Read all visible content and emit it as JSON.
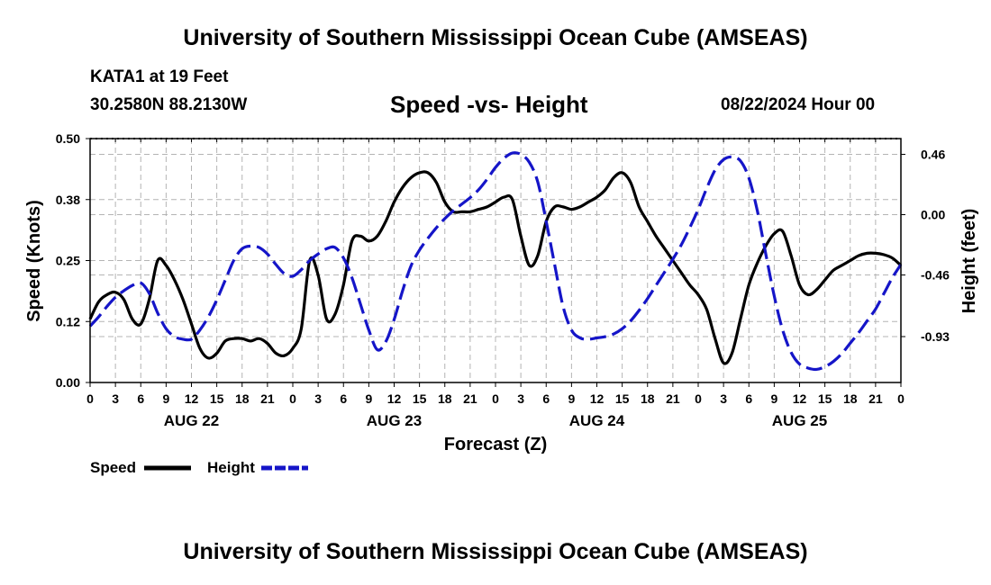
{
  "header": {
    "title": "University of Southern Mississippi Ocean Cube (AMSEAS)",
    "station": "KATA1 at 19 Feet",
    "coords": "30.2580N  88.2130W",
    "subtitle": "Speed -vs- Height",
    "datetime": "08/22/2024 Hour 00"
  },
  "footer": {
    "title": "University of Southern Mississippi Ocean Cube (AMSEAS)"
  },
  "legend": {
    "speed_label": "Speed",
    "height_label": "Height"
  },
  "colors": {
    "speed": "#000000",
    "height": "#1515c8",
    "grid": "#b4b4b4"
  },
  "chart_data": {
    "type": "line",
    "title": "Speed -vs- Height",
    "xlabel": "Forecast (Z)",
    "ylabel": "Speed (Knots)",
    "y2label": "Height (feet)",
    "x_range_hours": [
      0,
      96
    ],
    "ylim": [
      0,
      0.5
    ],
    "y2lim": [
      -1.28,
      0.58
    ],
    "yticks": [
      "0.00",
      "0.12",
      "0.25",
      "0.38",
      "0.50"
    ],
    "ytick_values": [
      0,
      0.125,
      0.25,
      0.375,
      0.5
    ],
    "y2ticks": [
      "-0.93",
      "-0.46",
      "0.00",
      "0.46"
    ],
    "y2tick_values": [
      -0.93,
      -0.46,
      0.0,
      0.46
    ],
    "xtick_labels": [
      "0",
      "3",
      "6",
      "9",
      "12",
      "15",
      "18",
      "21",
      "0",
      "3",
      "6",
      "9",
      "12",
      "15",
      "18",
      "21",
      "0",
      "3",
      "6",
      "9",
      "12",
      "15",
      "18",
      "21",
      "0",
      "3",
      "6",
      "9",
      "12",
      "15",
      "18",
      "21",
      "0"
    ],
    "day_labels": [
      {
        "label": "AUG 22",
        "hour": 12
      },
      {
        "label": "AUG 23",
        "hour": 36
      },
      {
        "label": "AUG 24",
        "hour": 60
      },
      {
        "label": "AUG 25",
        "hour": 84
      }
    ],
    "series": [
      {
        "name": "Speed",
        "axis": "left",
        "style": "solid",
        "x": [
          0,
          1,
          2,
          3,
          4,
          5,
          6,
          7,
          8,
          9,
          10,
          11,
          12,
          13,
          14,
          15,
          16,
          17,
          18,
          19,
          20,
          21,
          22,
          23,
          24,
          25,
          26,
          27,
          28,
          29,
          30,
          31,
          32,
          33,
          34,
          35,
          36,
          37,
          38,
          39,
          40,
          41,
          42,
          43,
          44,
          45,
          46,
          47,
          48,
          49,
          50,
          51,
          52,
          53,
          54,
          55,
          56,
          57,
          58,
          59,
          60,
          61,
          62,
          63,
          64,
          65,
          66,
          67,
          68,
          69,
          70,
          71,
          72,
          73,
          74,
          75,
          76,
          77,
          78,
          79,
          80,
          81,
          82,
          83,
          84,
          85,
          86,
          87,
          88,
          89,
          90,
          91,
          92,
          93,
          94,
          95,
          96
        ],
        "values": [
          0.13,
          0.165,
          0.18,
          0.185,
          0.17,
          0.13,
          0.12,
          0.17,
          0.25,
          0.24,
          0.21,
          0.17,
          0.12,
          0.07,
          0.05,
          0.06,
          0.085,
          0.09,
          0.09,
          0.085,
          0.09,
          0.08,
          0.06,
          0.055,
          0.07,
          0.11,
          0.25,
          0.22,
          0.13,
          0.14,
          0.2,
          0.29,
          0.3,
          0.29,
          0.3,
          0.33,
          0.37,
          0.4,
          0.42,
          0.43,
          0.43,
          0.41,
          0.37,
          0.35,
          0.35,
          0.35,
          0.355,
          0.36,
          0.37,
          0.38,
          0.375,
          0.3,
          0.24,
          0.26,
          0.33,
          0.36,
          0.36,
          0.355,
          0.36,
          0.37,
          0.38,
          0.395,
          0.42,
          0.43,
          0.41,
          0.36,
          0.33,
          0.3,
          0.275,
          0.25,
          0.225,
          0.2,
          0.18,
          0.15,
          0.09,
          0.04,
          0.06,
          0.13,
          0.2,
          0.245,
          0.28,
          0.305,
          0.31,
          0.26,
          0.2,
          0.18,
          0.19,
          0.21,
          0.23,
          0.24,
          0.25,
          0.26,
          0.265,
          0.265,
          0.262,
          0.255,
          0.24
        ]
      },
      {
        "name": "Height",
        "axis": "right",
        "style": "dashed",
        "x": [
          0,
          1,
          2,
          3,
          4,
          5,
          6,
          7,
          8,
          9,
          10,
          11,
          12,
          13,
          14,
          15,
          16,
          17,
          18,
          19,
          20,
          21,
          22,
          23,
          24,
          25,
          26,
          27,
          28,
          29,
          30,
          31,
          32,
          33,
          34,
          35,
          36,
          37,
          38,
          39,
          40,
          41,
          42,
          43,
          44,
          45,
          46,
          47,
          48,
          49,
          50,
          51,
          52,
          53,
          54,
          55,
          56,
          57,
          58,
          59,
          60,
          61,
          62,
          63,
          64,
          65,
          66,
          67,
          68,
          69,
          70,
          71,
          72,
          73,
          74,
          75,
          76,
          77,
          78,
          79,
          80,
          81,
          82,
          83,
          84,
          85,
          86,
          87,
          88,
          89,
          90,
          91,
          92,
          93,
          94,
          95,
          96
        ],
        "values": [
          -0.85,
          -0.78,
          -0.7,
          -0.63,
          -0.58,
          -0.54,
          -0.52,
          -0.6,
          -0.75,
          -0.87,
          -0.93,
          -0.95,
          -0.95,
          -0.88,
          -0.78,
          -0.65,
          -0.5,
          -0.35,
          -0.26,
          -0.24,
          -0.25,
          -0.3,
          -0.38,
          -0.45,
          -0.47,
          -0.42,
          -0.35,
          -0.3,
          -0.26,
          -0.25,
          -0.33,
          -0.48,
          -0.68,
          -0.88,
          -1.03,
          -0.97,
          -0.8,
          -0.58,
          -0.39,
          -0.27,
          -0.18,
          -0.1,
          -0.03,
          0.03,
          0.08,
          0.13,
          0.19,
          0.27,
          0.36,
          0.43,
          0.47,
          0.46,
          0.4,
          0.25,
          -0.05,
          -0.38,
          -0.7,
          -0.88,
          -0.94,
          -0.95,
          -0.94,
          -0.93,
          -0.91,
          -0.87,
          -0.81,
          -0.73,
          -0.64,
          -0.54,
          -0.44,
          -0.34,
          -0.23,
          -0.1,
          0.04,
          0.2,
          0.34,
          0.42,
          0.44,
          0.41,
          0.28,
          0.03,
          -0.3,
          -0.62,
          -0.88,
          -1.05,
          -1.14,
          -1.17,
          -1.18,
          -1.16,
          -1.12,
          -1.06,
          -0.98,
          -0.9,
          -0.81,
          -0.72,
          -0.6,
          -0.48,
          -0.38
        ]
      }
    ]
  }
}
